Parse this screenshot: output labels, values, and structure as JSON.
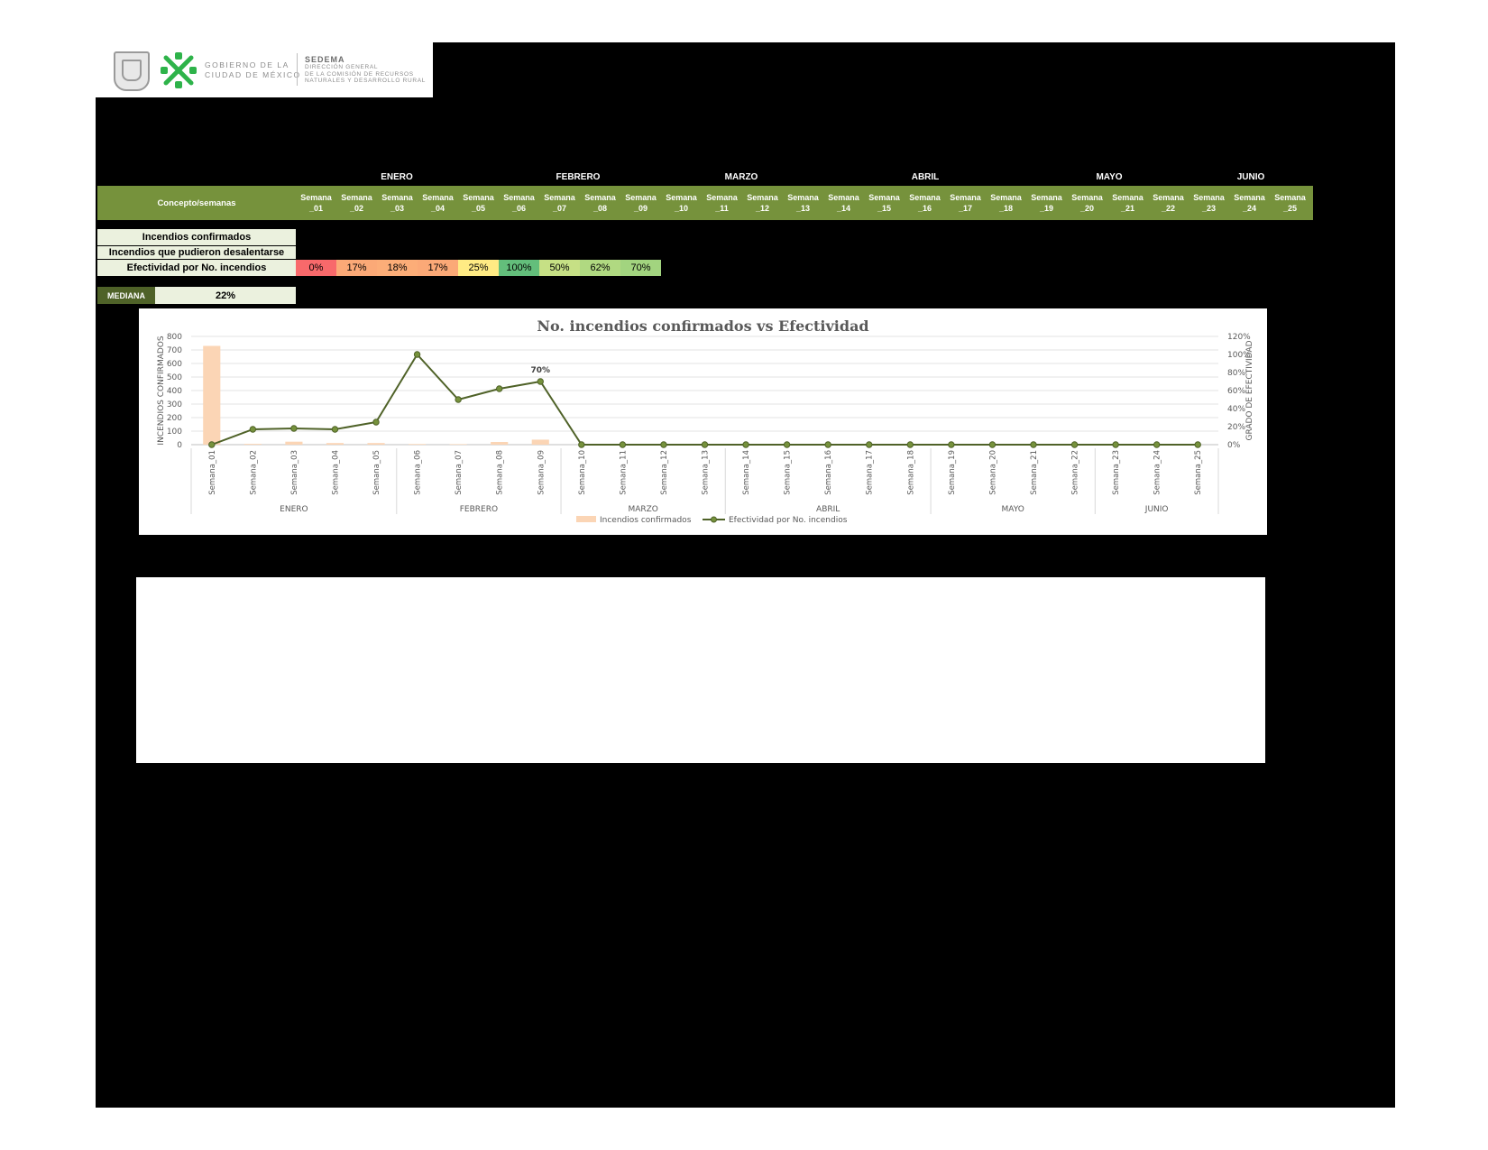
{
  "logo": {
    "gov_line1": "GOBIERNO DE LA",
    "gov_line2": "CIUDAD DE MÉXICO",
    "org_title": "SEDEMA",
    "org_line1": "DIRECCIÓN GENERAL",
    "org_line2": "DE LA COMISIÓN DE RECURSOS",
    "org_line3": "NATURALES Y DESARROLLO RURAL"
  },
  "table": {
    "months": [
      "ENERO",
      "FEBRERO",
      "MARZO",
      "ABRIL",
      "MAYO",
      "JUNIO"
    ],
    "concept_header": "Concepto/semanas",
    "weeks": [
      "Semana _01",
      "Semana _02",
      "Semana _03",
      "Semana _04",
      "Semana _05",
      "Semana _06",
      "Semana _07",
      "Semana _08",
      "Semana _09",
      "Semana _10",
      "Semana _11",
      "Semana _12",
      "Semana _13",
      "Semana _14",
      "Semana _15",
      "Semana _16",
      "Semana _17",
      "Semana _18",
      "Semana _19",
      "Semana _20",
      "Semana _21",
      "Semana _22",
      "Semana _23",
      "Semana _24",
      "Semana _25"
    ],
    "row_confirmados": "Incendios confirmados",
    "row_desalentarse": "Incendios que pudieron desalentarse",
    "row_efectividad": "Efectividad por No. incendios",
    "efectividad": [
      {
        "value": "0%",
        "color": "#f8696b"
      },
      {
        "value": "17%",
        "color": "#fba977"
      },
      {
        "value": "18%",
        "color": "#fcad78"
      },
      {
        "value": "17%",
        "color": "#fba977"
      },
      {
        "value": "25%",
        "color": "#ffeb84"
      },
      {
        "value": "100%",
        "color": "#63be7b"
      },
      {
        "value": "50%",
        "color": "#c6e085"
      },
      {
        "value": "62%",
        "color": "#b0d981"
      },
      {
        "value": "70%",
        "color": "#a2d47f"
      }
    ],
    "mediana_label": "MEDIANA",
    "mediana_value": "22%"
  },
  "chart_data": {
    "type": "bar+line",
    "title": "No. incendios confirmados vs Efectividad",
    "ylabel_left": "INCENDIOS CONFIRMADOS",
    "ylabel_right": "GRADO DE EFECTIVIDAD",
    "categories": [
      "Semana_01",
      "Semana_02",
      "Semana_03",
      "Semana_04",
      "Semana_05",
      "Semana_06",
      "Semana_07",
      "Semana_08",
      "Semana_09",
      "Semana_10",
      "Semana_11",
      "Semana_12",
      "Semana_13",
      "Semana_14",
      "Semana_15",
      "Semana_16",
      "Semana_17",
      "Semana_18",
      "Semana_19",
      "Semana_20",
      "Semana_21",
      "Semana_22",
      "Semana_23",
      "Semana_24",
      "Semana_25"
    ],
    "month_groups": [
      {
        "name": "ENERO",
        "count": 5
      },
      {
        "name": "FEBRERO",
        "count": 4
      },
      {
        "name": "MARZO",
        "count": 4
      },
      {
        "name": "ABRIL",
        "count": 5
      },
      {
        "name": "MAYO",
        "count": 4
      },
      {
        "name": "JUNIO",
        "count": 3
      }
    ],
    "left_ticks": [
      "0",
      "100",
      "200",
      "300",
      "400",
      "500",
      "600",
      "700",
      "800"
    ],
    "right_ticks": [
      "0%",
      "20%",
      "40%",
      "60%",
      "80%",
      "100%",
      "120%"
    ],
    "ylim_left": [
      0,
      800
    ],
    "ylim_right": [
      0,
      1.2
    ],
    "series": [
      {
        "name": "Incendios confirmados",
        "kind": "bar",
        "color": "#fbd5b5",
        "values": [
          730,
          6,
          22,
          12,
          12,
          5,
          4,
          20,
          37,
          0,
          0,
          0,
          0,
          0,
          0,
          0,
          0,
          0,
          0,
          0,
          0,
          0,
          0,
          0,
          0
        ]
      },
      {
        "name": "Efectividad por No. incendios",
        "kind": "line",
        "color": "#4f6228",
        "values": [
          0,
          0.17,
          0.18,
          0.17,
          0.25,
          1.0,
          0.5,
          0.62,
          0.7,
          0,
          0,
          0,
          0,
          0,
          0,
          0,
          0,
          0,
          0,
          0,
          0,
          0,
          0,
          0,
          0
        ]
      }
    ],
    "annotation": {
      "index": 8,
      "text": "70%"
    },
    "legend_position": "bottom",
    "grid": true
  }
}
